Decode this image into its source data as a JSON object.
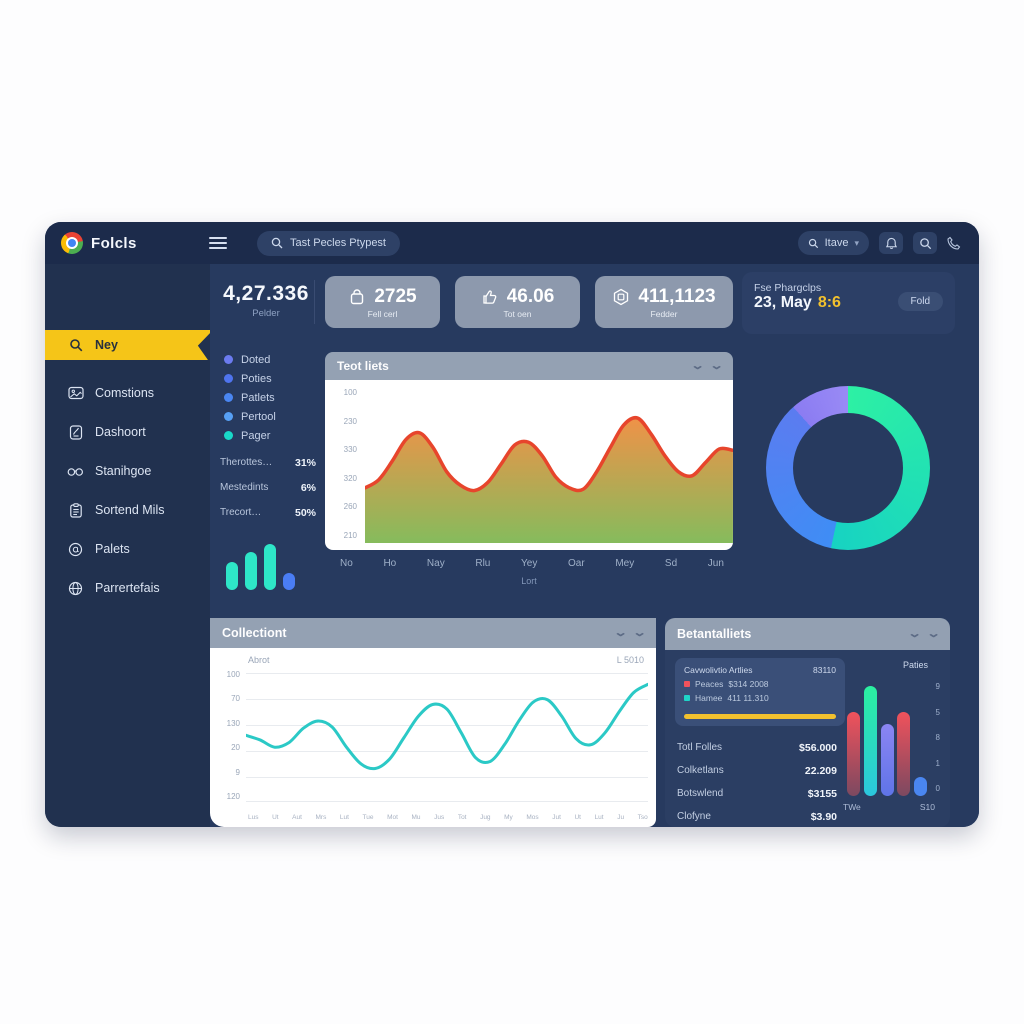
{
  "window": {
    "logo": "Folcls"
  },
  "topbar": {
    "search_placeholder": "Tast Pecles Ptypest",
    "user_menu": "Itave"
  },
  "sidebar": {
    "items": [
      {
        "label": "Ney",
        "active": true
      },
      {
        "label": "Comstions"
      },
      {
        "label": "Dashoort"
      },
      {
        "label": "Stanihgoe"
      },
      {
        "label": "Sortend Mils"
      },
      {
        "label": "Palets"
      },
      {
        "label": "Parrertefais"
      }
    ]
  },
  "stats": {
    "big": {
      "value": "4,27.336",
      "label": "Pelder"
    },
    "cards": [
      {
        "value": "2725",
        "label": "Fell cerl",
        "icon": "bag-icon"
      },
      {
        "value": "46.06",
        "label": "Tot oen",
        "icon": "thumb-icon"
      },
      {
        "value": "411,1123",
        "label": "Fedder",
        "icon": "hexagon-icon"
      }
    ]
  },
  "promo": {
    "title": "Fse Phargclps",
    "date": "23, May",
    "time": "8:6",
    "button": "Fold"
  },
  "legend": {
    "items": [
      {
        "label": "Doted",
        "color": "#6b7bf0"
      },
      {
        "label": "Poties",
        "color": "#4f74ee"
      },
      {
        "label": "Patlets",
        "color": "#4a86f2"
      },
      {
        "label": "Pertool",
        "color": "#57a0f5"
      },
      {
        "label": "Pager",
        "color": "#19d9c9"
      }
    ]
  },
  "percent_rows": [
    {
      "label": "Therottes…",
      "value": "31%"
    },
    {
      "label": "Mestedints",
      "value": "6%"
    },
    {
      "label": "Trecort…",
      "value": "50%"
    }
  ],
  "details": {
    "title": "Betantalliets",
    "subcard": {
      "title": "Cavwolivtio Artlies",
      "value": "83110",
      "rows": [
        {
          "label": "Peaces",
          "value": "$314 2008",
          "color": "#f0525c"
        },
        {
          "label": "Hamee",
          "value": "411 11.310",
          "color": "#1fd4c8"
        }
      ],
      "progress_color": "#f2c12e"
    },
    "table": [
      {
        "label": "Totl Folles",
        "value": "$56.000"
      },
      {
        "label": "Colketlans",
        "value": "22.209"
      },
      {
        "label": "Botswlend",
        "value": "$3155"
      },
      {
        "label": "Clofyne",
        "value": "$3.90"
      }
    ],
    "bars_label": "Paties"
  },
  "colors": {
    "accent_yellow": "#f5c518",
    "navy_dark": "#1c2b4b",
    "navy_main": "#273a5f",
    "card_gray": "#8d99ad",
    "area_line": "#e7452c",
    "teal_line": "#2bc9c6"
  },
  "chart_data": [
    {
      "id": "area",
      "type": "area",
      "title": "Teot liets",
      "y_ticks": [
        "100",
        "230",
        "330",
        "320",
        "260",
        "210"
      ],
      "x_ticks": [
        "No",
        "Ho",
        "Nay",
        "Rlu",
        "Yey",
        "Oar",
        "Mey",
        "Sd",
        "Jun"
      ],
      "caption": "Lort",
      "points": [
        38,
        44,
        58,
        74,
        79,
        68,
        50,
        40,
        36,
        42,
        56,
        70,
        72,
        62,
        46,
        38,
        37,
        50,
        68,
        85,
        90,
        78,
        62,
        50,
        47,
        57,
        67,
        66
      ],
      "line_color": "#e7452c",
      "fill_top": "#ef8c3e",
      "fill_bottom": "#7fb854",
      "ylim": [
        210,
        100
      ],
      "grid": false
    },
    {
      "id": "donut",
      "type": "pie",
      "segments": [
        {
          "label": "teal-green",
          "pct": 53,
          "deg": 192,
          "from": "#2df0a4",
          "to": "#17d3c2"
        },
        {
          "label": "blue",
          "pct": 35,
          "deg": 126,
          "from": "#3f8df5",
          "to": "#5b7cf0"
        },
        {
          "label": "purple",
          "pct": 12,
          "deg": 42,
          "from": "#8b7cf2",
          "to": "#998af5"
        }
      ],
      "legend_position": "none"
    },
    {
      "id": "line",
      "type": "line",
      "title": "Collectiont",
      "corner_left": "Abrot",
      "corner_right": "L 5010",
      "y_ticks": [
        "100",
        "70",
        "130",
        "20",
        "9",
        "120"
      ],
      "x_ticks": [
        "Lus",
        "Ut",
        "Aut",
        "Mrs",
        "Lut",
        "Tue",
        "Mot",
        "Mu",
        "Jus",
        "Tot",
        "Jug",
        "My",
        "Mos",
        "Jut",
        "Ut",
        "Lut",
        "Ju",
        "Tso"
      ],
      "points": [
        50,
        46,
        40,
        44,
        56,
        62,
        57,
        40,
        26,
        22,
        30,
        48,
        66,
        76,
        72,
        52,
        31,
        28,
        42,
        62,
        78,
        80,
        66,
        47,
        42,
        52,
        70,
        86,
        93
      ],
      "color": "#2bc9c6",
      "grid": true
    },
    {
      "id": "detail-bars",
      "type": "bar",
      "values": [
        72,
        95,
        62,
        72,
        16
      ],
      "colors": [
        [
          "#f0525c",
          "#7c4960"
        ],
        [
          "#2bf0a0",
          "#2bc6de"
        ],
        [
          "#8b85f2",
          "#5f74e8"
        ],
        [
          "#f0525c",
          "#7c4960"
        ],
        [
          "#4a86f0",
          "#4a86f0"
        ]
      ],
      "axis_right": [
        "9",
        "5",
        "8",
        "1",
        "0"
      ],
      "x_labels": [
        "TWe",
        "S10"
      ]
    },
    {
      "id": "mini-bars",
      "type": "bar",
      "values": [
        45,
        62,
        75,
        28
      ],
      "colors": [
        [
          "#2ee6c8",
          "#2ee6c8"
        ],
        [
          "#2ee6c8",
          "#2ee6c8"
        ],
        [
          "#2ee6c8",
          "#2ee6c8"
        ],
        [
          "#4a7df5",
          "#4a7df5"
        ]
      ]
    }
  ]
}
